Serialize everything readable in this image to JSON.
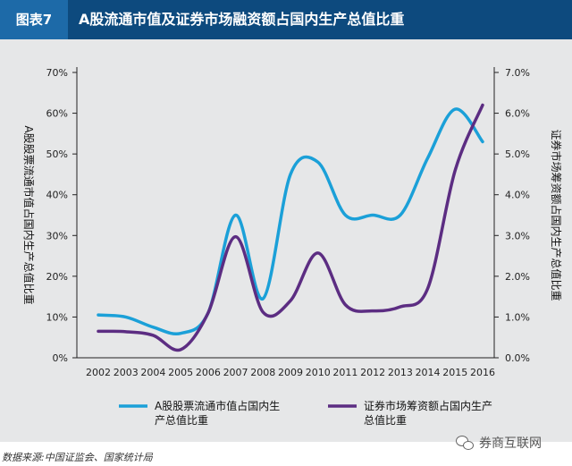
{
  "header": {
    "badge": "图表7",
    "title": "A股流通市值及证券市场融资额占国内生产总值比重"
  },
  "footer": {
    "source": "数据来源:中国证监会、国家统计局",
    "watermark": "券商互联网"
  },
  "colors": {
    "header_bg": "#0d4a7e",
    "badge_bg": "#1d6aa8",
    "series1": "#1ba0d8",
    "series2": "#5c2d82",
    "panel": "#e6e7e8"
  },
  "chart_data": {
    "type": "line",
    "x": [
      "2002",
      "2003",
      "2004",
      "2005",
      "2006",
      "2007",
      "2008",
      "2009",
      "2010",
      "2011",
      "2012",
      "2013",
      "2014",
      "2015",
      "2016"
    ],
    "y_left": {
      "label": "A股股票流通市值占国内生产总值比重",
      "ticks": [
        "0%",
        "10%",
        "20%",
        "30%",
        "40%",
        "50%",
        "60%",
        "70%"
      ],
      "ylim": [
        0,
        70
      ]
    },
    "y_right": {
      "label": "证券市场筹资额占国内生产总值比重",
      "ticks": [
        "0.0%",
        "1.0%",
        "2.0%",
        "3.0%",
        "4.0%",
        "5.0%",
        "6.0%",
        "7.0%"
      ],
      "ylim": [
        0,
        7
      ]
    },
    "series": [
      {
        "name": "A股股票流通市值占国内生产总值比重",
        "axis": "left",
        "values": [
          10.5,
          10,
          7.5,
          6,
          11,
          35,
          14.5,
          45,
          48,
          35,
          35,
          35,
          49,
          61,
          53
        ]
      },
      {
        "name": "证券市场筹资额占国内生产总值比重",
        "axis": "right",
        "values": [
          0.65,
          0.64,
          0.55,
          0.2,
          1.1,
          2.97,
          1.12,
          1.4,
          2.57,
          1.3,
          1.15,
          1.25,
          1.7,
          4.6,
          6.2
        ]
      }
    ],
    "legend_position": "bottom",
    "grid": false
  }
}
